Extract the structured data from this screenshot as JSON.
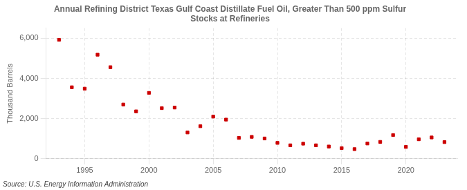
{
  "chart_data": {
    "type": "scatter",
    "title": "Annual Refining District Texas Gulf Coast Distillate Fuel Oil, Greater Than 500 ppm Sulfur\nStocks at Refineries",
    "ylabel": "Thousand Barrels",
    "source": "Source: U.S. Energy Information Administration",
    "x": [
      1993,
      1994,
      1995,
      1996,
      1997,
      1998,
      1999,
      2000,
      2001,
      2002,
      2003,
      2004,
      2005,
      2006,
      2007,
      2008,
      2009,
      2010,
      2011,
      2012,
      2013,
      2014,
      2015,
      2016,
      2017,
      2018,
      2019,
      2020,
      2021,
      2022,
      2023
    ],
    "values": [
      5920,
      3560,
      3490,
      5180,
      4560,
      2700,
      2360,
      3280,
      2520,
      2550,
      1310,
      1620,
      2100,
      1950,
      1040,
      1090,
      1010,
      790,
      670,
      750,
      670,
      610,
      530,
      480,
      760,
      840,
      1180,
      590,
      970,
      1060,
      830
    ],
    "color": "#cc0000",
    "marker": "square",
    "xlim": [
      1992,
      2024
    ],
    "xticks": [
      1995,
      2000,
      2005,
      2010,
      2015,
      2020
    ],
    "ylim": [
      0,
      6500
    ],
    "yticks": [
      0,
      {
        "value": 2000,
        "label": "2,000"
      },
      {
        "value": 4000,
        "label": "4,000"
      },
      {
        "value": 6000,
        "label": "6,000"
      }
    ],
    "grid": true
  }
}
